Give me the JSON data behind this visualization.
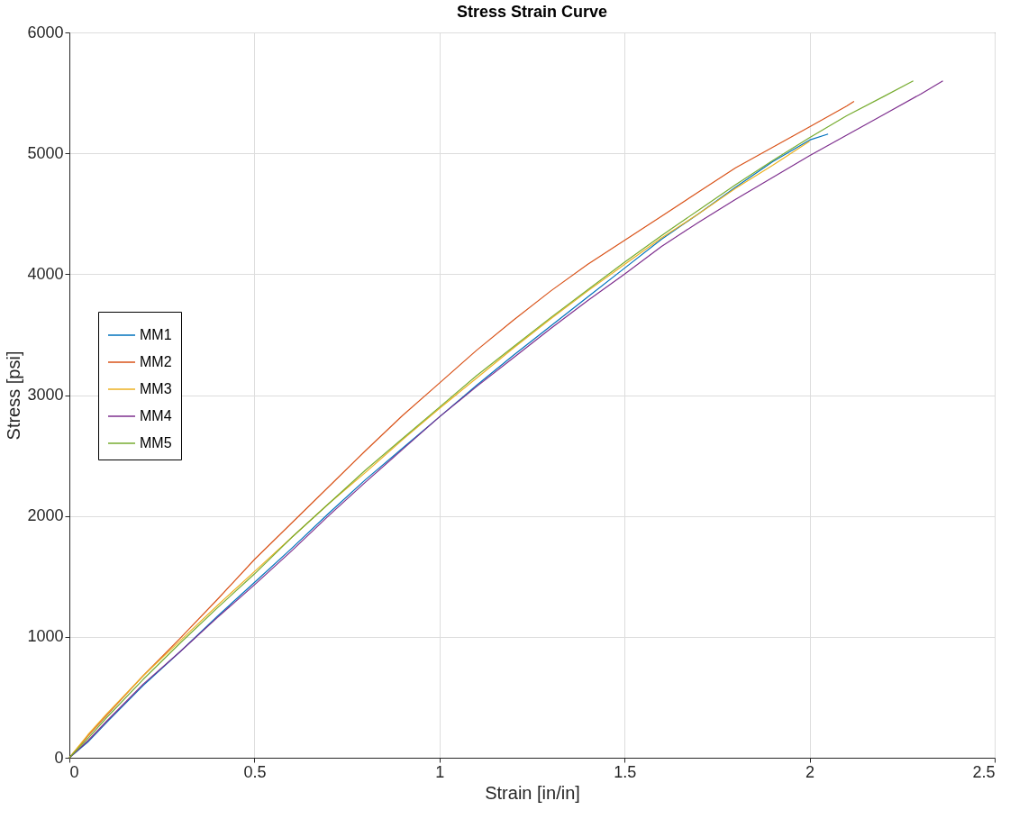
{
  "chart_data": {
    "type": "line",
    "title": "Stress Strain Curve",
    "xlabel": "Strain [in/in]",
    "ylabel": "Stress [psi]",
    "xlim": [
      0,
      2.5
    ],
    "xticks": [
      0,
      0.5,
      1,
      1.5,
      2,
      2.5
    ],
    "ylim": [
      0,
      6000
    ],
    "yticks": [
      0,
      1000,
      2000,
      3000,
      4000,
      5000,
      6000
    ],
    "grid": true,
    "legend": "left",
    "line_style": "solid",
    "series": [
      {
        "name": "MM1",
        "color": "#0072bd",
        "x": [
          0,
          0.05,
          0.1,
          0.2,
          0.3,
          0.4,
          0.5,
          0.6,
          0.7,
          0.8,
          0.9,
          1.0,
          1.1,
          1.2,
          1.3,
          1.4,
          1.5,
          1.6,
          1.7,
          1.8,
          1.9,
          2.0,
          2.05
        ],
        "values": [
          0,
          130,
          290,
          600,
          880,
          1170,
          1450,
          1730,
          2020,
          2300,
          2560,
          2820,
          3080,
          3330,
          3570,
          3810,
          4050,
          4290,
          4500,
          4720,
          4930,
          5110,
          5160
        ]
      },
      {
        "name": "MM2",
        "color": "#d95319",
        "x": [
          0,
          0.05,
          0.1,
          0.2,
          0.3,
          0.4,
          0.5,
          0.6,
          0.7,
          0.8,
          0.9,
          1.0,
          1.1,
          1.2,
          1.3,
          1.4,
          1.5,
          1.6,
          1.7,
          1.8,
          1.9,
          2.0,
          2.1,
          2.12
        ],
        "values": [
          0,
          180,
          350,
          680,
          990,
          1310,
          1640,
          1940,
          2240,
          2540,
          2830,
          3100,
          3370,
          3620,
          3860,
          4080,
          4280,
          4480,
          4680,
          4880,
          5050,
          5220,
          5390,
          5430
        ]
      },
      {
        "name": "MM3",
        "color": "#edb120",
        "x": [
          0,
          0.05,
          0.1,
          0.2,
          0.3,
          0.4,
          0.5,
          0.6,
          0.7,
          0.8,
          0.9,
          1.0,
          1.1,
          1.2,
          1.3,
          1.4,
          1.5,
          1.6,
          1.7,
          1.8,
          1.9,
          2.0
        ],
        "values": [
          0,
          190,
          360,
          680,
          970,
          1260,
          1540,
          1820,
          2100,
          2360,
          2630,
          2890,
          3140,
          3390,
          3630,
          3860,
          4080,
          4300,
          4500,
          4710,
          4900,
          5100
        ]
      },
      {
        "name": "MM4",
        "color": "#7e2f8e",
        "x": [
          0,
          0.05,
          0.1,
          0.2,
          0.3,
          0.4,
          0.5,
          0.6,
          0.7,
          0.8,
          0.9,
          1.0,
          1.1,
          1.2,
          1.3,
          1.4,
          1.5,
          1.6,
          1.7,
          1.8,
          1.9,
          2.0,
          2.1,
          2.2,
          2.3,
          2.36
        ],
        "values": [
          0,
          140,
          300,
          610,
          880,
          1160,
          1430,
          1710,
          2000,
          2280,
          2550,
          2820,
          3070,
          3310,
          3550,
          3780,
          4000,
          4230,
          4430,
          4620,
          4800,
          4980,
          5150,
          5320,
          5490,
          5600
        ]
      },
      {
        "name": "MM5",
        "color": "#77ac30",
        "x": [
          0,
          0.05,
          0.1,
          0.2,
          0.3,
          0.4,
          0.5,
          0.6,
          0.7,
          0.8,
          0.9,
          1.0,
          1.1,
          1.2,
          1.3,
          1.4,
          1.5,
          1.6,
          1.7,
          1.8,
          1.9,
          2.0,
          2.1,
          2.2,
          2.28
        ],
        "values": [
          0,
          160,
          330,
          650,
          950,
          1240,
          1520,
          1820,
          2100,
          2380,
          2640,
          2900,
          3160,
          3400,
          3640,
          3870,
          4100,
          4320,
          4530,
          4740,
          4940,
          5130,
          5310,
          5470,
          5600
        ]
      }
    ]
  }
}
